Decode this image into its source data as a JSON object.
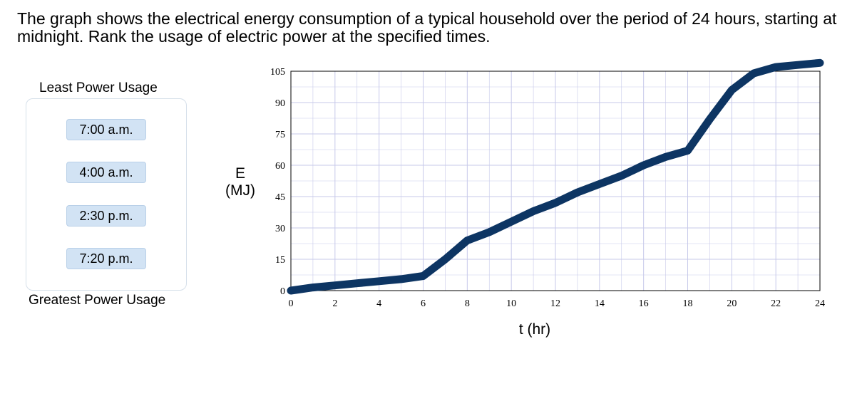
{
  "question": {
    "text": "The graph shows the electrical energy consumption of a typical household over the period of 24 hours, starting at midnight.  Rank the usage of electric power at the specified times."
  },
  "ranking": {
    "top_label": "Least Power Usage",
    "bottom_label": "Greatest Power Usage",
    "items": [
      {
        "label": "7:00 a.m."
      },
      {
        "label": "4:00 a.m."
      },
      {
        "label": "2:30 p.m."
      },
      {
        "label": "7:20 p.m."
      }
    ]
  },
  "colors": {
    "curve": "#0d3563",
    "grid": "#c7c9ea",
    "chip_bg": "#d2e3f4"
  },
  "chart_data": {
    "type": "line",
    "title": "",
    "xlabel": "t (hr)",
    "ylabel_line1": "E",
    "ylabel_line2": "(MJ)",
    "xlim": [
      0,
      24
    ],
    "ylim": [
      0,
      105
    ],
    "xticks": [
      0,
      2,
      4,
      6,
      8,
      10,
      12,
      14,
      16,
      18,
      20,
      22,
      24
    ],
    "yticks": [
      0,
      15,
      30,
      45,
      60,
      75,
      90,
      105
    ],
    "grid": true,
    "series": [
      {
        "x": [
          0,
          1,
          2,
          3,
          4,
          5,
          6,
          7,
          8,
          9,
          10,
          11,
          12,
          13,
          14,
          15,
          16,
          17,
          18,
          19,
          20,
          21,
          22,
          23,
          24
        ],
        "y": [
          0,
          1.5,
          2.5,
          3.5,
          4.5,
          5.5,
          7,
          15,
          24,
          28,
          33,
          38,
          42,
          47,
          51,
          55,
          60,
          64,
          67,
          82,
          96,
          104,
          107,
          108,
          109
        ]
      }
    ]
  }
}
